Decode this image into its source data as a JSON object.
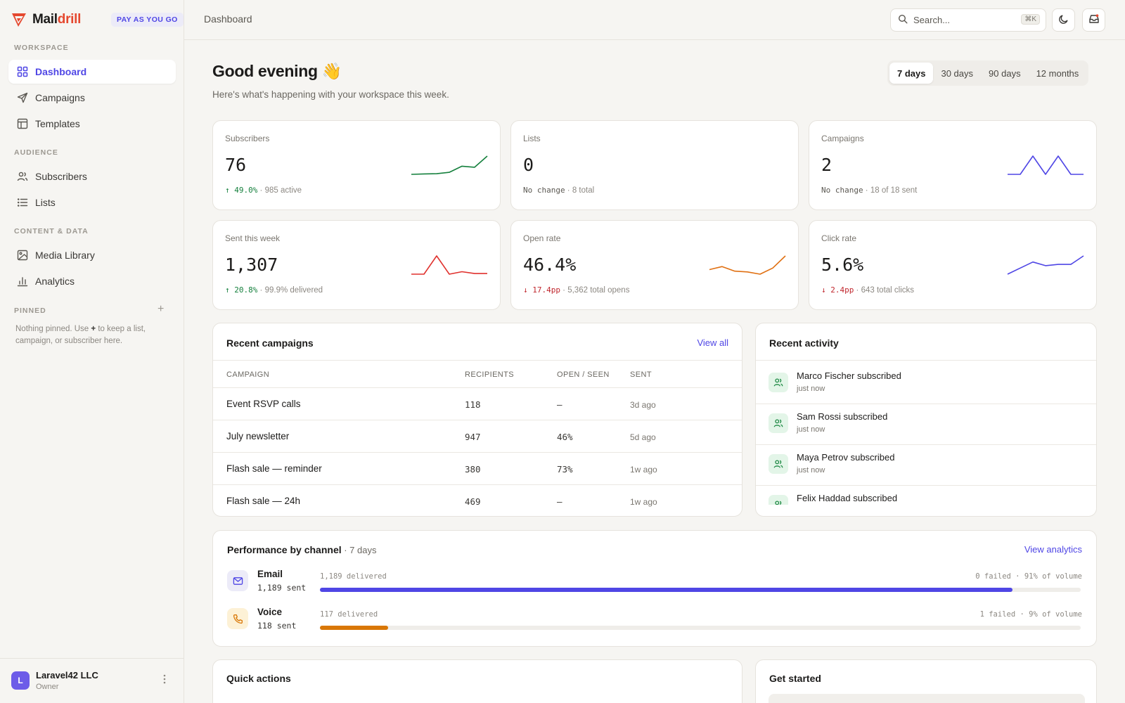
{
  "brand": {
    "name_main": "Mail",
    "name_accent": "drill",
    "plan": "PAY AS YOU GO"
  },
  "sidebar": {
    "sections": {
      "workspace": "WORKSPACE",
      "audience": "AUDIENCE",
      "content": "CONTENT & DATA",
      "pinned": "PINNED"
    },
    "items": [
      {
        "label": "Dashboard",
        "icon": "grid-icon",
        "active": true
      },
      {
        "label": "Campaigns",
        "icon": "send-icon"
      },
      {
        "label": "Templates",
        "icon": "layout-icon"
      },
      {
        "label": "Subscribers",
        "icon": "users-icon"
      },
      {
        "label": "Lists",
        "icon": "list-icon"
      },
      {
        "label": "Media Library",
        "icon": "image-icon"
      },
      {
        "label": "Analytics",
        "icon": "bar-chart-icon"
      }
    ],
    "pinned_hint_pre": "Nothing pinned. Use ",
    "pinned_hint_key": "+",
    "pinned_hint_post": " to keep a list, campaign, or subscriber here.",
    "pinned_add": "+"
  },
  "account": {
    "initial": "L",
    "name": "Laravel42 LLC",
    "role": "Owner"
  },
  "topbar": {
    "breadcrumb": "Dashboard",
    "search_placeholder": "Search...",
    "search_shortcut": "⌘K"
  },
  "header": {
    "greeting": "Good evening 👋",
    "subtitle": "Here's what's happening with your workspace this week.",
    "ranges": [
      "7 days",
      "30 days",
      "90 days",
      "12 months"
    ],
    "active_range": "7 days"
  },
  "stats": [
    {
      "label": "Subscribers",
      "value": "76",
      "delta": "↑ 49.0%",
      "trend": "up",
      "note": "985 active",
      "color": "#15803d",
      "spark": [
        2,
        2.2,
        2.3,
        3,
        6,
        5.5,
        11
      ]
    },
    {
      "label": "Lists",
      "value": "0",
      "delta": "No change",
      "trend": "flat",
      "note": "8 total",
      "color": "#15803d",
      "spark": []
    },
    {
      "label": "Campaigns",
      "value": "2",
      "delta": "No change",
      "trend": "flat",
      "note": "18 of 18 sent",
      "color": "#4f46e5",
      "spark": [
        0,
        0,
        2,
        0,
        2,
        0,
        0
      ]
    },
    {
      "label": "Sent this week",
      "value": "1,307",
      "delta": "↑ 20.8%",
      "trend": "up",
      "note": "99.9% delivered",
      "color": "#e0312d",
      "spark": [
        0,
        0,
        3,
        0,
        0.4,
        0.1,
        0.1
      ]
    },
    {
      "label": "Open rate",
      "value": "46.4%",
      "delta": "↓ 17.4pp",
      "trend": "down",
      "note": "5,362 total opens",
      "color": "#e07012",
      "spark": [
        3.2,
        3.6,
        3,
        2.9,
        2.6,
        3.4,
        5
      ]
    },
    {
      "label": "Click rate",
      "value": "5.6%",
      "delta": "↓ 2.4pp",
      "trend": "down",
      "note": "643 total clicks",
      "color": "#4f46e5",
      "spark": [
        1,
        2,
        3,
        2.4,
        2.6,
        2.6,
        4
      ]
    }
  ],
  "recent_campaigns": {
    "title": "Recent campaigns",
    "link": "View all",
    "columns": [
      "CAMPAIGN",
      "RECIPIENTS",
      "OPEN / SEEN",
      "SENT"
    ],
    "rows": [
      {
        "name": "Event RSVP calls",
        "recipients": "118",
        "open": "–",
        "sent": "3d ago"
      },
      {
        "name": "July newsletter",
        "recipients": "947",
        "open": "46%",
        "sent": "5d ago"
      },
      {
        "name": "Flash sale — reminder",
        "recipients": "380",
        "open": "73%",
        "sent": "1w ago"
      },
      {
        "name": "Flash sale — 24h",
        "recipients": "469",
        "open": "–",
        "sent": "1w ago"
      }
    ]
  },
  "recent_activity": {
    "title": "Recent activity",
    "items": [
      {
        "text": "Marco Fischer subscribed",
        "time": "just now"
      },
      {
        "text": "Sam Rossi subscribed",
        "time": "just now"
      },
      {
        "text": "Maya Petrov subscribed",
        "time": "just now"
      },
      {
        "text": "Felix Haddad subscribed",
        "time": ""
      }
    ]
  },
  "performance": {
    "title": "Performance by channel",
    "period": " · 7 days",
    "link": "View analytics",
    "channels": [
      {
        "name": "Email",
        "sent": "1,189 sent",
        "delivered": "1,189 delivered",
        "meta": "0 failed · 91% of volume",
        "share": 0.91,
        "color": "#4f46e5",
        "icon": "mail-icon",
        "icon_bg": "#ecebf8"
      },
      {
        "name": "Voice",
        "sent": "118 sent",
        "delivered": "117 delivered",
        "meta": "1 failed · 9% of volume",
        "share": 0.09,
        "color": "#d97706",
        "icon": "phone-icon",
        "icon_bg": "#fdf1d6"
      }
    ]
  },
  "quick_actions": {
    "title": "Quick actions"
  },
  "get_started": {
    "title": "Get started"
  }
}
